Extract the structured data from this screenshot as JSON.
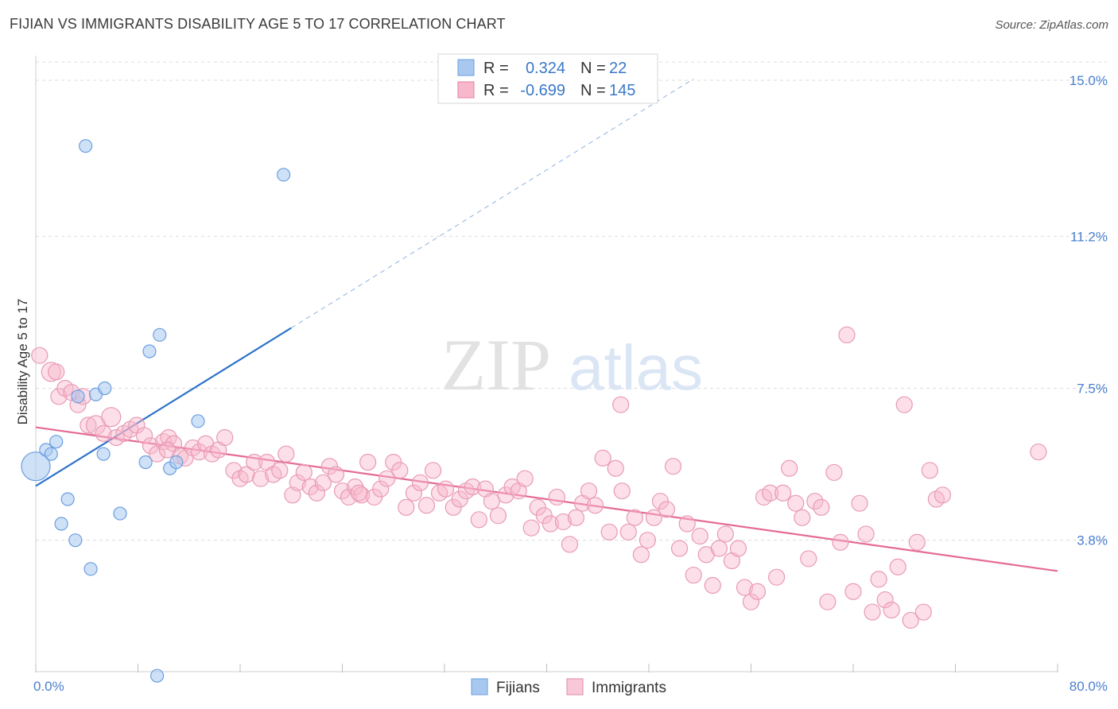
{
  "title": "FIJIAN VS IMMIGRANTS DISABILITY AGE 5 TO 17 CORRELATION CHART",
  "source": "Source: ZipAtlas.com",
  "watermark": {
    "zip": "ZIP",
    "atlas": "atlas"
  },
  "legend": {
    "rows": [
      {
        "r_label": "R =",
        "r_value": "0.324",
        "n_label": "N =",
        "n_value": "22",
        "color": "#a8c8f0",
        "stroke": "#6a9ee0"
      },
      {
        "r_label": "R =",
        "r_value": "-0.699",
        "n_label": "N =",
        "n_value": "145",
        "color": "#f8b8cc",
        "stroke": "#e57fa0"
      }
    ]
  },
  "bottom_legend": [
    {
      "label": "Fijians",
      "color": "#a8c8f0",
      "stroke": "#6a9ee0"
    },
    {
      "label": "Immigrants",
      "color": "#f8c8d8",
      "stroke": "#e08aa8"
    }
  ],
  "colors": {
    "blue_fill": "rgba(168,200,240,0.55)",
    "blue_stroke": "#6a9ee0",
    "blue_line": "#2f74c9",
    "pink_fill": "rgba(248,184,204,0.45)",
    "pink_stroke": "#e89ab4",
    "pink_line": "#e56b96",
    "grid": "#dcdcdc",
    "tick_text": "#4a7fd0"
  },
  "chart_data": {
    "type": "scatter",
    "title": "FIJIAN VS IMMIGRANTS DISABILITY AGE 5 TO 17 CORRELATION CHART",
    "xlabel": "",
    "ylabel": "Disability Age 5 to 17",
    "xlim": [
      0,
      80
    ],
    "ylim": [
      0.6,
      15.6
    ],
    "x_tick_labels": [
      "0.0%",
      "80.0%"
    ],
    "y_ticks": [
      3.8,
      7.5,
      11.2,
      15.0
    ],
    "y_tick_labels": [
      "3.8%",
      "7.5%",
      "11.2%",
      "15.0%"
    ],
    "grid": true,
    "legend_position": "top-center",
    "series": [
      {
        "name": "Fijians",
        "r": 0.324,
        "n": 22,
        "trend": {
          "x0": 0,
          "y0": 5.12,
          "x1": 20,
          "y1": 8.97,
          "dash_to_x": 51.5
        },
        "points": [
          [
            0,
            5.6,
            18
          ],
          [
            0.8,
            6.0,
            8
          ],
          [
            1.2,
            5.9,
            8
          ],
          [
            1.6,
            6.2,
            8
          ],
          [
            2.0,
            4.2,
            8
          ],
          [
            2.5,
            4.8,
            8
          ],
          [
            3.1,
            3.8,
            8
          ],
          [
            3.3,
            7.3,
            8
          ],
          [
            3.9,
            13.4,
            8
          ],
          [
            4.3,
            3.1,
            8
          ],
          [
            4.7,
            7.35,
            8
          ],
          [
            5.3,
            5.9,
            8
          ],
          [
            5.4,
            7.5,
            8
          ],
          [
            6.6,
            4.45,
            8
          ],
          [
            8.6,
            5.7,
            8
          ],
          [
            8.9,
            8.4,
            8
          ],
          [
            9.5,
            0.5,
            8
          ],
          [
            9.7,
            8.8,
            8
          ],
          [
            10.5,
            5.55,
            8
          ],
          [
            11.0,
            5.7,
            8
          ],
          [
            12.7,
            6.7,
            8
          ],
          [
            19.4,
            12.7,
            8
          ]
        ]
      },
      {
        "name": "Immigrants",
        "r": -0.699,
        "n": 145,
        "trend": {
          "x0": 0,
          "y0": 6.55,
          "x1": 80,
          "y1": 3.05
        },
        "points": [
          [
            0.3,
            8.3,
            10
          ],
          [
            1.2,
            7.9,
            12
          ],
          [
            1.6,
            7.9,
            10
          ],
          [
            1.8,
            7.3,
            10
          ],
          [
            2.3,
            7.5,
            10
          ],
          [
            2.8,
            7.4,
            10
          ],
          [
            3.3,
            7.1,
            10
          ],
          [
            3.7,
            7.3,
            10
          ],
          [
            4.1,
            6.6,
            10
          ],
          [
            4.7,
            6.6,
            12
          ],
          [
            5.3,
            6.4,
            10
          ],
          [
            5.9,
            6.8,
            12
          ],
          [
            6.3,
            6.3,
            10
          ],
          [
            6.9,
            6.4,
            10
          ],
          [
            7.4,
            6.5,
            10
          ],
          [
            7.9,
            6.6,
            10
          ],
          [
            8.5,
            6.35,
            10
          ],
          [
            9.0,
            6.1,
            10
          ],
          [
            9.5,
            5.9,
            10
          ],
          [
            10.0,
            6.2,
            10
          ],
          [
            10.4,
            6.3,
            10
          ],
          [
            10.8,
            6.15,
            10
          ],
          [
            11.3,
            5.85,
            10
          ],
          [
            11.7,
            5.8,
            10
          ],
          [
            12.3,
            6.05,
            10
          ],
          [
            12.8,
            5.95,
            10
          ],
          [
            13.3,
            6.15,
            10
          ],
          [
            13.8,
            5.9,
            10
          ],
          [
            14.3,
            6.0,
            10
          ],
          [
            14.8,
            6.3,
            10
          ],
          [
            15.5,
            5.5,
            10
          ],
          [
            16.0,
            5.3,
            10
          ],
          [
            16.5,
            5.4,
            10
          ],
          [
            17.1,
            5.7,
            10
          ],
          [
            17.6,
            5.3,
            10
          ],
          [
            18.1,
            5.7,
            10
          ],
          [
            18.6,
            5.4,
            10
          ],
          [
            19.1,
            5.5,
            10
          ],
          [
            19.6,
            5.9,
            10
          ],
          [
            20.1,
            4.9,
            10
          ],
          [
            20.5,
            5.2,
            10
          ],
          [
            21.0,
            5.45,
            10
          ],
          [
            21.5,
            5.1,
            10
          ],
          [
            22.0,
            4.95,
            10
          ],
          [
            22.5,
            5.2,
            10
          ],
          [
            23.0,
            5.6,
            10
          ],
          [
            23.5,
            5.4,
            10
          ],
          [
            24.0,
            5.0,
            10
          ],
          [
            24.5,
            4.85,
            10
          ],
          [
            25.0,
            5.1,
            10
          ],
          [
            25.5,
            4.9,
            10
          ],
          [
            26.0,
            5.7,
            10
          ],
          [
            26.5,
            4.85,
            10
          ],
          [
            27.0,
            5.05,
            10
          ],
          [
            27.5,
            5.3,
            10
          ],
          [
            28.0,
            5.7,
            10
          ],
          [
            28.5,
            5.5,
            10
          ],
          [
            29.0,
            4.6,
            10
          ],
          [
            29.6,
            4.95,
            10
          ],
          [
            30.1,
            5.2,
            10
          ],
          [
            30.6,
            4.65,
            10
          ],
          [
            31.1,
            5.5,
            10
          ],
          [
            31.6,
            4.95,
            10
          ],
          [
            32.1,
            5.05,
            10
          ],
          [
            32.7,
            4.6,
            10
          ],
          [
            33.2,
            4.8,
            10
          ],
          [
            33.7,
            5.0,
            10
          ],
          [
            34.2,
            5.1,
            10
          ],
          [
            34.7,
            4.3,
            10
          ],
          [
            35.2,
            5.05,
            10
          ],
          [
            35.7,
            4.75,
            10
          ],
          [
            36.2,
            4.4,
            10
          ],
          [
            36.8,
            4.9,
            10
          ],
          [
            37.3,
            5.1,
            10
          ],
          [
            37.8,
            5.0,
            10
          ],
          [
            38.3,
            5.3,
            10
          ],
          [
            38.8,
            4.1,
            10
          ],
          [
            39.3,
            4.6,
            10
          ],
          [
            39.8,
            4.4,
            10
          ],
          [
            40.3,
            4.2,
            10
          ],
          [
            40.8,
            4.85,
            10
          ],
          [
            41.3,
            4.25,
            10
          ],
          [
            41.8,
            3.7,
            10
          ],
          [
            42.3,
            4.35,
            10
          ],
          [
            42.8,
            4.7,
            10
          ],
          [
            43.3,
            5.0,
            10
          ],
          [
            43.8,
            4.65,
            10
          ],
          [
            44.4,
            5.8,
            10
          ],
          [
            44.9,
            4.0,
            10
          ],
          [
            45.4,
            5.55,
            10
          ],
          [
            45.9,
            5.0,
            10
          ],
          [
            46.4,
            4.0,
            10
          ],
          [
            46.9,
            4.35,
            10
          ],
          [
            47.4,
            3.45,
            10
          ],
          [
            47.9,
            3.8,
            10
          ],
          [
            48.4,
            4.35,
            10
          ],
          [
            48.9,
            4.75,
            10
          ],
          [
            49.4,
            4.55,
            10
          ],
          [
            49.9,
            5.6,
            10
          ],
          [
            50.4,
            3.6,
            10
          ],
          [
            51.0,
            4.2,
            10
          ],
          [
            51.5,
            2.95,
            10
          ],
          [
            52.0,
            3.9,
            10
          ],
          [
            52.5,
            3.45,
            10
          ],
          [
            53.0,
            2.7,
            10
          ],
          [
            53.5,
            3.6,
            10
          ],
          [
            54.0,
            3.95,
            10
          ],
          [
            54.5,
            3.3,
            10
          ],
          [
            55.0,
            3.6,
            10
          ],
          [
            55.5,
            2.65,
            10
          ],
          [
            56.0,
            2.3,
            10
          ],
          [
            56.5,
            2.55,
            10
          ],
          [
            57.0,
            4.85,
            10
          ],
          [
            57.5,
            4.95,
            10
          ],
          [
            58.0,
            2.9,
            10
          ],
          [
            58.5,
            4.95,
            10
          ],
          [
            59.0,
            5.55,
            10
          ],
          [
            59.5,
            4.7,
            10
          ],
          [
            60.0,
            4.35,
            10
          ],
          [
            60.5,
            3.35,
            10
          ],
          [
            61.0,
            4.75,
            10
          ],
          [
            61.5,
            4.6,
            10
          ],
          [
            62.0,
            2.3,
            10
          ],
          [
            62.5,
            5.45,
            10
          ],
          [
            63.0,
            3.75,
            10
          ],
          [
            63.5,
            8.8,
            10
          ],
          [
            64.0,
            2.55,
            10
          ],
          [
            64.5,
            4.7,
            10
          ],
          [
            65.0,
            3.95,
            10
          ],
          [
            65.5,
            2.05,
            10
          ],
          [
            66.0,
            2.85,
            10
          ],
          [
            66.5,
            2.35,
            10
          ],
          [
            67.0,
            2.1,
            10
          ],
          [
            67.5,
            3.15,
            10
          ],
          [
            68.0,
            7.1,
            10
          ],
          [
            68.5,
            1.85,
            10
          ],
          [
            69.0,
            3.75,
            10
          ],
          [
            69.5,
            2.05,
            10
          ],
          [
            70.0,
            5.5,
            10
          ],
          [
            70.5,
            4.8,
            10
          ],
          [
            71.0,
            4.9,
            10
          ],
          [
            45.8,
            7.1,
            10
          ],
          [
            78.5,
            5.95,
            10
          ],
          [
            10.3,
            6.0,
            10
          ],
          [
            25.3,
            4.95,
            10
          ]
        ]
      }
    ]
  }
}
